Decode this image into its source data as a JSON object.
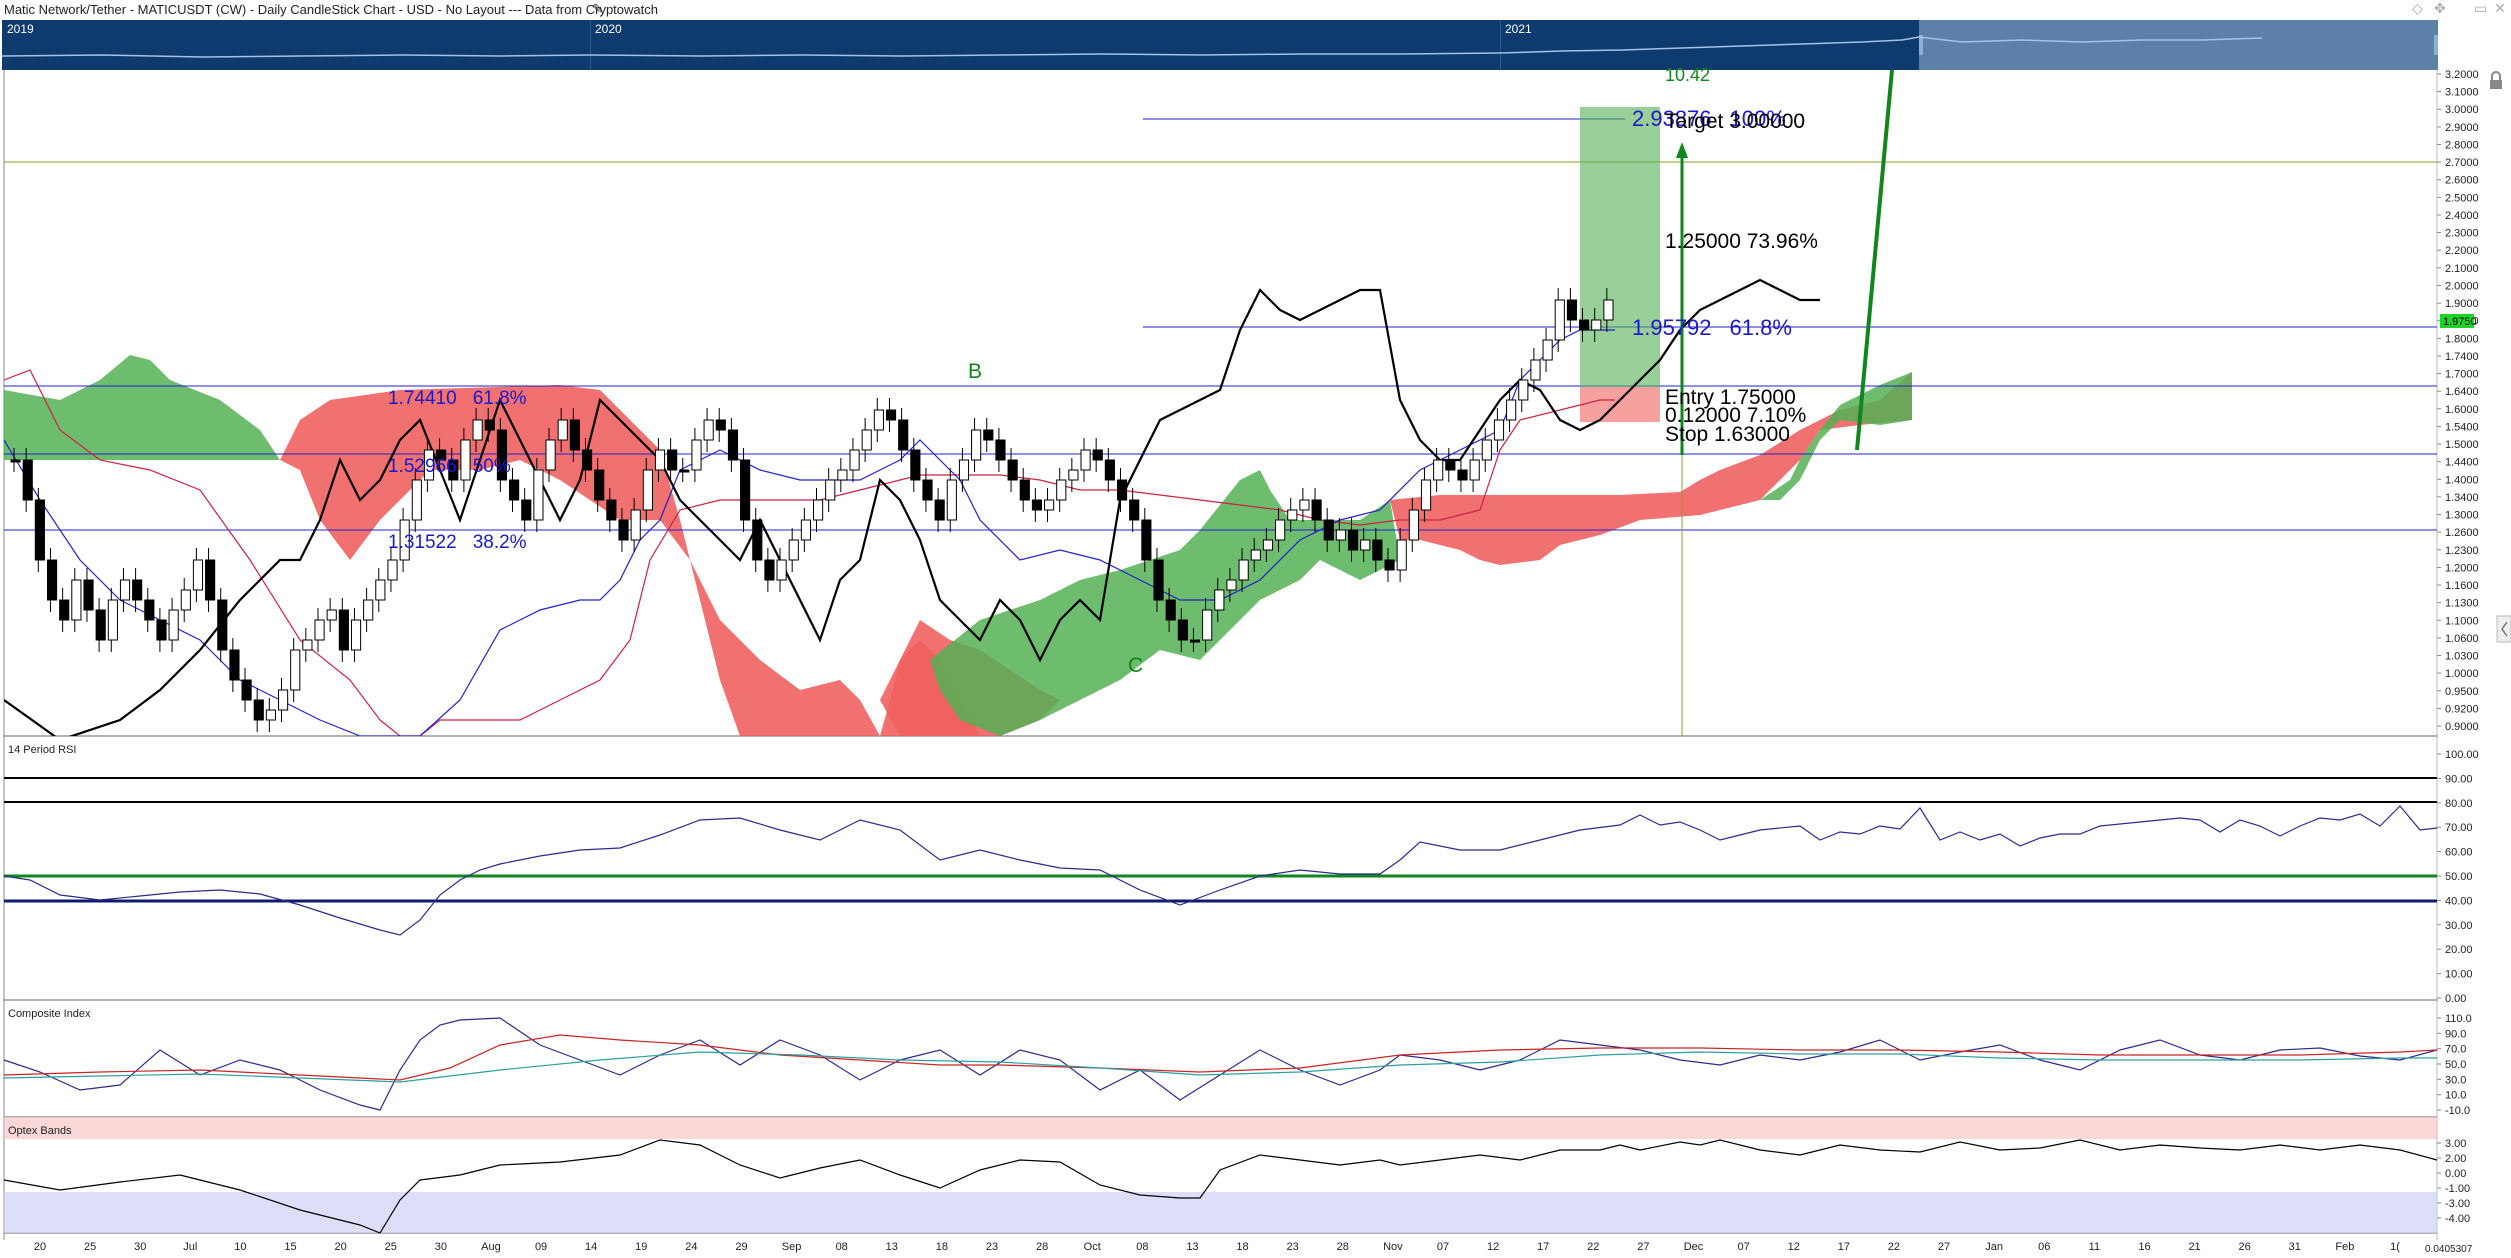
{
  "title_bar": {
    "title": "Matic Network/Tether - MATICUSDT (CW) - Daily CandleStick Chart - USD - No Layout --- Data from Cryptowatch",
    "controls": [
      "◇",
      "✥",
      "▭",
      "✕"
    ]
  },
  "navigator": {
    "years": [
      "2019",
      "2020",
      "2021"
    ]
  },
  "chart_data": [
    {
      "type": "candlestick",
      "panel": "price",
      "y_axis_labels": [
        "3.2000",
        "3.1000",
        "3.0000",
        "2.9000",
        "2.8000",
        "2.7000",
        "2.6000",
        "2.5000",
        "2.4000",
        "2.3000",
        "2.2000",
        "2.1000",
        "2.0000",
        "1.9000",
        "1.8500",
        "1.8000",
        "1.7400",
        "1.7000",
        "1.6400",
        "1.6000",
        "1.5400",
        "1.5000",
        "1.4400",
        "1.4000",
        "1.3400",
        "1.3000",
        "1.2600",
        "1.2300",
        "1.2000",
        "1.1600",
        "1.1300",
        "1.1000",
        "1.0600",
        "1.0300",
        "1.0000",
        "0.9500",
        "0.9200",
        "0.9000"
      ],
      "last_price_badge": "1.9750",
      "fib_levels": [
        {
          "price": "1.74410",
          "pct": "61.8%"
        },
        {
          "price": "1.52966",
          "pct": "50%"
        },
        {
          "price": "1.31522",
          "pct": "38.2%"
        },
        {
          "price": "1.95792",
          "pct": "61.8%"
        },
        {
          "price": "2.93876",
          "pct": "100%"
        }
      ],
      "wave_labels": [
        "B",
        "C"
      ],
      "trade": {
        "target": "Target  3.00000",
        "reward": "1.25000  73.96%",
        "entry": "Entry  1.75000",
        "risk": "0.12000  7.10%",
        "stop": "Stop  1.63000",
        "top_label": "10.42"
      },
      "x_axis_labels": [
        "20",
        "25",
        "30",
        "Jul",
        "10",
        "15",
        "20",
        "25",
        "30",
        "Aug",
        "09",
        "14",
        "19",
        "24",
        "29",
        "Sep",
        "08",
        "13",
        "18",
        "23",
        "28",
        "Oct",
        "08",
        "13",
        "18",
        "23",
        "28",
        "Nov",
        "07",
        "12",
        "17",
        "22",
        "27",
        "Dec",
        "07",
        "12",
        "17",
        "22",
        "27",
        "Jan",
        "06",
        "11",
        "16",
        "21",
        "26",
        "31",
        "Feb",
        "1("
      ],
      "corner_value": "0.0405307",
      "series_colors": {
        "up": "#ffffff",
        "down": "#000000",
        "kumo_bull": "#55b055",
        "kumo_bear": "#f06060",
        "tenkan": "#2222cc",
        "kijun": "#cc2244",
        "chikou": "#000000"
      }
    },
    {
      "type": "line",
      "panel": "rsi",
      "title": "14 Period RSI",
      "y_axis_labels": [
        "100.00",
        "90.00",
        "80.00",
        "70.00",
        "60.00",
        "50.00",
        "40.00",
        "30.00",
        "20.00",
        "10.00",
        "0.00"
      ],
      "levels": [
        90,
        80,
        50,
        40
      ]
    },
    {
      "type": "line",
      "panel": "composite",
      "title": "Composite Index",
      "y_axis_labels": [
        "110.0",
        "90.0",
        "70.0",
        "50.0",
        "30.0",
        "10.0",
        "-10.0"
      ]
    },
    {
      "type": "line",
      "panel": "optex",
      "title": "Optex Bands",
      "y_axis_labels": [
        "3.00",
        "2.00",
        "0.00",
        "-1.00",
        "-3.00",
        "-4.00"
      ]
    }
  ]
}
